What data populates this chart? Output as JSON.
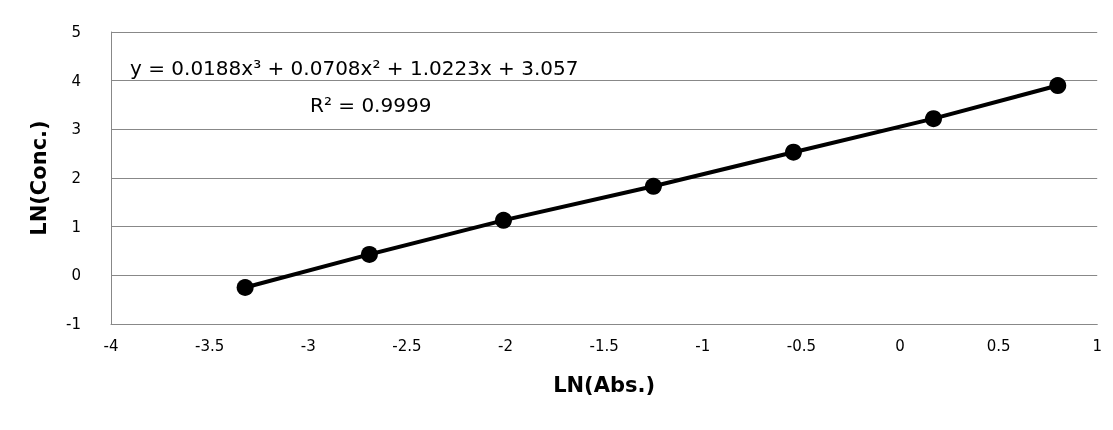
{
  "chart_data": {
    "type": "line",
    "xlabel": "LN(Abs.)",
    "ylabel": "LN(Conc.)",
    "annotations": [
      "y = 0.0188x³ + 0.0708x² + 1.0223x + 3.057",
      "R² = 0.9999"
    ],
    "series": [
      {
        "color": "#000000",
        "x": [
          -3.32,
          -2.69,
          -2.01,
          -1.25,
          -0.54,
          0.17,
          0.8
        ],
        "values": [
          -0.25,
          0.43,
          1.13,
          1.83,
          2.53,
          3.22,
          3.9
        ]
      }
    ],
    "xlim": [
      -4,
      1
    ],
    "xticks": [
      -4,
      -3.5,
      -3,
      -2.5,
      -2,
      -1.5,
      -1,
      -0.5,
      0,
      0.5,
      1
    ],
    "ylim": [
      -1,
      5
    ],
    "yticks": [
      -1,
      0,
      1,
      2,
      3,
      4,
      5
    ],
    "grid": "y",
    "marker": "circle",
    "line_style": "solid"
  }
}
